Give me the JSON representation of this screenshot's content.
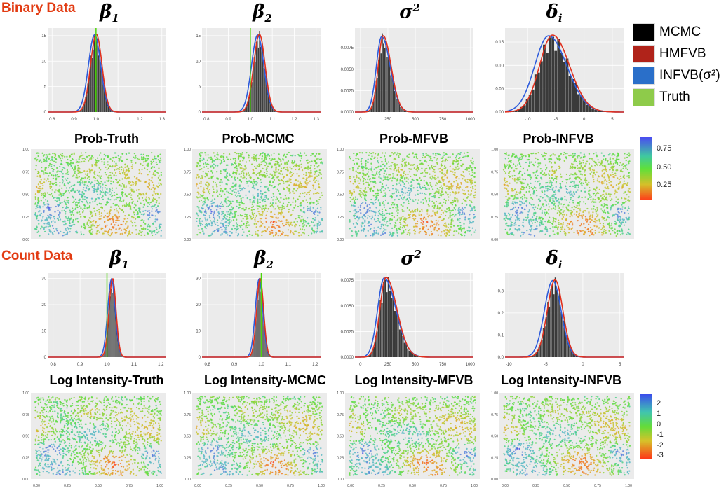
{
  "sections": {
    "binary": "Binary Data",
    "count": "Count Data"
  },
  "param_titles": {
    "beta1": {
      "base": "β",
      "sub": "1",
      "sup": ""
    },
    "beta2": {
      "base": "β",
      "sub": "2",
      "sup": ""
    },
    "sigma2": {
      "base": "σ",
      "sub": "",
      "sup": "2"
    },
    "delta": {
      "base": "δ",
      "sub": "i",
      "sup": ""
    }
  },
  "legend": [
    {
      "label": "MCMC",
      "color": "#000000"
    },
    {
      "label": "HMFVB",
      "color": "#b0231a"
    },
    {
      "label": "INFVB(σ²)",
      "color": "#2a6fc9"
    },
    {
      "label": "Truth",
      "color": "#8ecb4a"
    }
  ],
  "colors": {
    "panel_bg": "#ebebeb",
    "grid": "#ffffff",
    "bar": "#3a3a3a",
    "hmfvb": "#e0301e",
    "infvb": "#2d5bdc",
    "truth": "#4cd60a"
  },
  "map_titles": {
    "binary": [
      "Prob-Truth",
      "Prob-MCMC",
      "Prob-MFVB",
      "Prob-INFVB"
    ],
    "count": [
      "Log Intensity-Truth",
      "Log Intensity-MCMC",
      "Log Intensity-MFVB",
      "Log Intensity-INFVB"
    ]
  },
  "colorbars": {
    "binary": {
      "ticks": [
        "0.75",
        "0.50",
        "0.25"
      ]
    },
    "count": {
      "ticks": [
        "2",
        "1",
        "0",
        "-1",
        "-2",
        "-3"
      ]
    }
  },
  "chart_data": [
    {
      "type": "bar",
      "id": "bin-beta1",
      "x_range": [
        0.78,
        1.32
      ],
      "ylim": [
        0,
        16.5
      ],
      "xticks": [
        "0.8",
        "0.9",
        "1.0",
        "1.1",
        "1.2",
        "1.3"
      ],
      "yticks": [
        "0",
        "5",
        "10",
        "15"
      ],
      "mean": 1.0,
      "sd": 0.026,
      "peak": 15.3,
      "truth": 1.0
    },
    {
      "type": "bar",
      "id": "bin-beta2",
      "x_range": [
        0.78,
        1.32
      ],
      "ylim": [
        0,
        16.5
      ],
      "xticks": [
        "0.8",
        "0.9",
        "1.0",
        "1.1",
        "1.2",
        "1.3"
      ],
      "yticks": [
        "0",
        "5",
        "10",
        "15"
      ],
      "mean": 1.04,
      "sd": 0.026,
      "peak": 15.3,
      "truth": 1.0
    },
    {
      "type": "bar",
      "id": "bin-sigma2",
      "x_range": [
        -50,
        1030
      ],
      "ylim": [
        0,
        0.0098
      ],
      "xticks": [
        "0",
        "250",
        "500",
        "750",
        "1000"
      ],
      "yticks": [
        "0.0000",
        "0.0025",
        "0.0050",
        "0.0075"
      ],
      "mean": 205,
      "sd": 45,
      "peak": 0.0089,
      "skew": 1.6,
      "truth": null
    },
    {
      "type": "bar",
      "id": "bin-delta",
      "x_range": [
        -14,
        7
      ],
      "ylim": [
        0,
        0.18
      ],
      "xticks": [
        "-10",
        "-5",
        "0",
        "5"
      ],
      "yticks": [
        "0.00",
        "0.05",
        "0.10",
        "0.15"
      ],
      "mean": -5.7,
      "sd": 2.3,
      "peak": 0.165,
      "skew": 1.3,
      "truth": null
    },
    {
      "type": "bar",
      "id": "cnt-beta1",
      "x_range": [
        0.78,
        1.22
      ],
      "ylim": [
        0,
        32
      ],
      "xticks": [
        "0.8",
        "0.9",
        "1.0",
        "1.1",
        "1.2"
      ],
      "yticks": [
        "0",
        "10",
        "20",
        "30"
      ],
      "mean": 1.02,
      "sd": 0.013,
      "peak": 30,
      "truth": 1.0
    },
    {
      "type": "bar",
      "id": "cnt-beta2",
      "x_range": [
        0.78,
        1.22
      ],
      "ylim": [
        0,
        32
      ],
      "xticks": [
        "0.8",
        "0.9",
        "1.0",
        "1.1",
        "1.2"
      ],
      "yticks": [
        "0",
        "10",
        "20",
        "30"
      ],
      "mean": 0.995,
      "sd": 0.013,
      "peak": 30,
      "truth": 1.0
    },
    {
      "type": "bar",
      "id": "cnt-sigma2",
      "x_range": [
        -50,
        1030
      ],
      "ylim": [
        0,
        0.0082
      ],
      "xticks": [
        "0",
        "250",
        "500",
        "750",
        "1000"
      ],
      "yticks": [
        "0.0000",
        "0.0025",
        "0.0050",
        "0.0075"
      ],
      "mean": 230,
      "sd": 55,
      "peak": 0.0078,
      "skew": 1.8,
      "truth": null
    },
    {
      "type": "bar",
      "id": "cnt-delta",
      "x_range": [
        -10.5,
        5.5
      ],
      "ylim": [
        0,
        0.38
      ],
      "xticks": [
        "-10",
        "-5",
        "0",
        "5"
      ],
      "yticks": [
        "0.0",
        "0.1",
        "0.2",
        "0.3"
      ],
      "mean": -3.8,
      "sd": 1.05,
      "peak": 0.35,
      "truth": null
    }
  ],
  "map_axes": {
    "y_ticks": [
      "0.00",
      "0.25",
      "0.50",
      "0.75",
      "1.00"
    ],
    "x_ticks": [
      "0.00",
      "0.25",
      "0.50",
      "0.75",
      "1.00"
    ]
  }
}
